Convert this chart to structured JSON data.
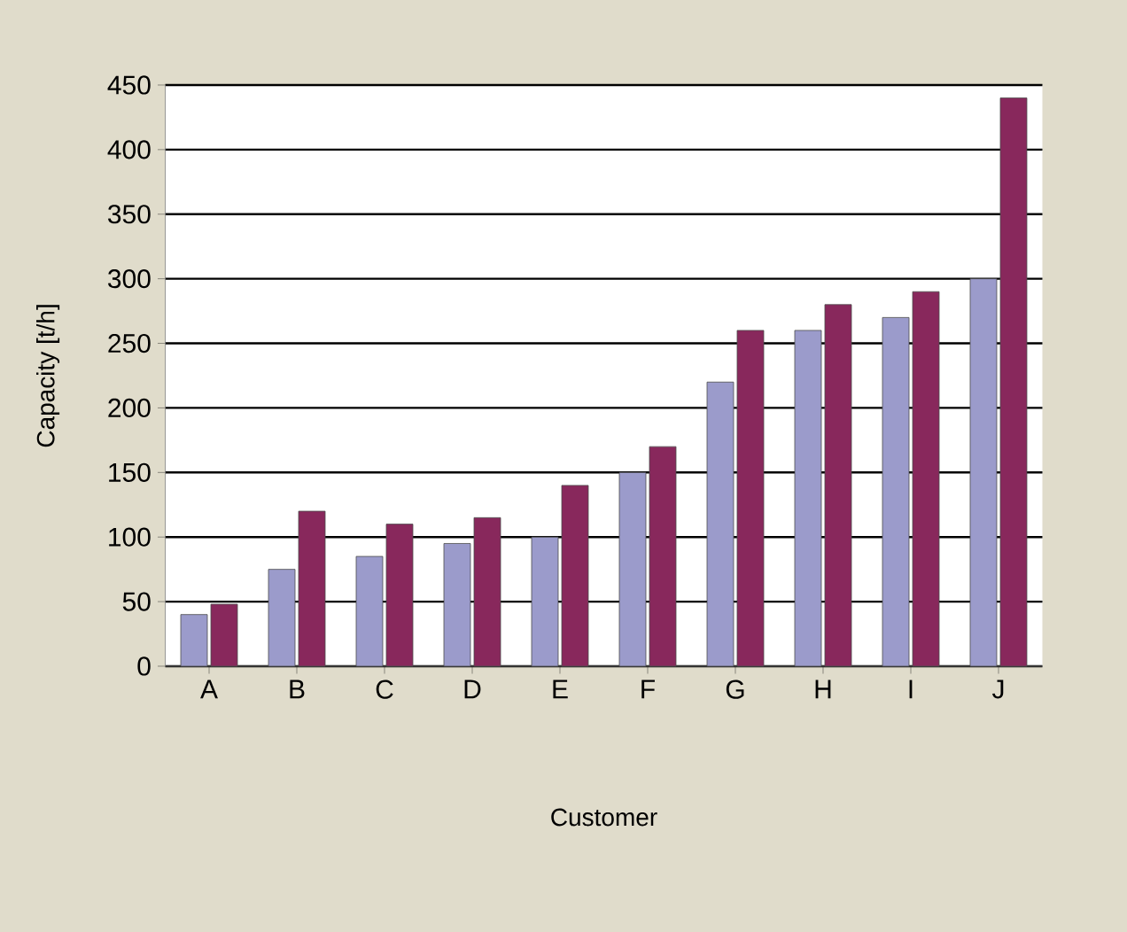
{
  "chart_data": {
    "type": "bar",
    "xlabel": "Customer",
    "ylabel": "Capacity [t/h]",
    "categories": [
      "A",
      "B",
      "C",
      "D",
      "E",
      "F",
      "G",
      "H",
      "I",
      "J"
    ],
    "series": [
      {
        "color": "#9b9bcb",
        "values": [
          40,
          75,
          85,
          95,
          100,
          150,
          220,
          260,
          270,
          300
        ]
      },
      {
        "color": "#88285c",
        "values": [
          48,
          120,
          110,
          115,
          140,
          170,
          260,
          280,
          290,
          440
        ]
      }
    ],
    "ylim": [
      0,
      450
    ],
    "yticks": [
      0,
      50,
      100,
      150,
      200,
      250,
      300,
      350,
      400,
      450
    ],
    "grid": "y"
  }
}
